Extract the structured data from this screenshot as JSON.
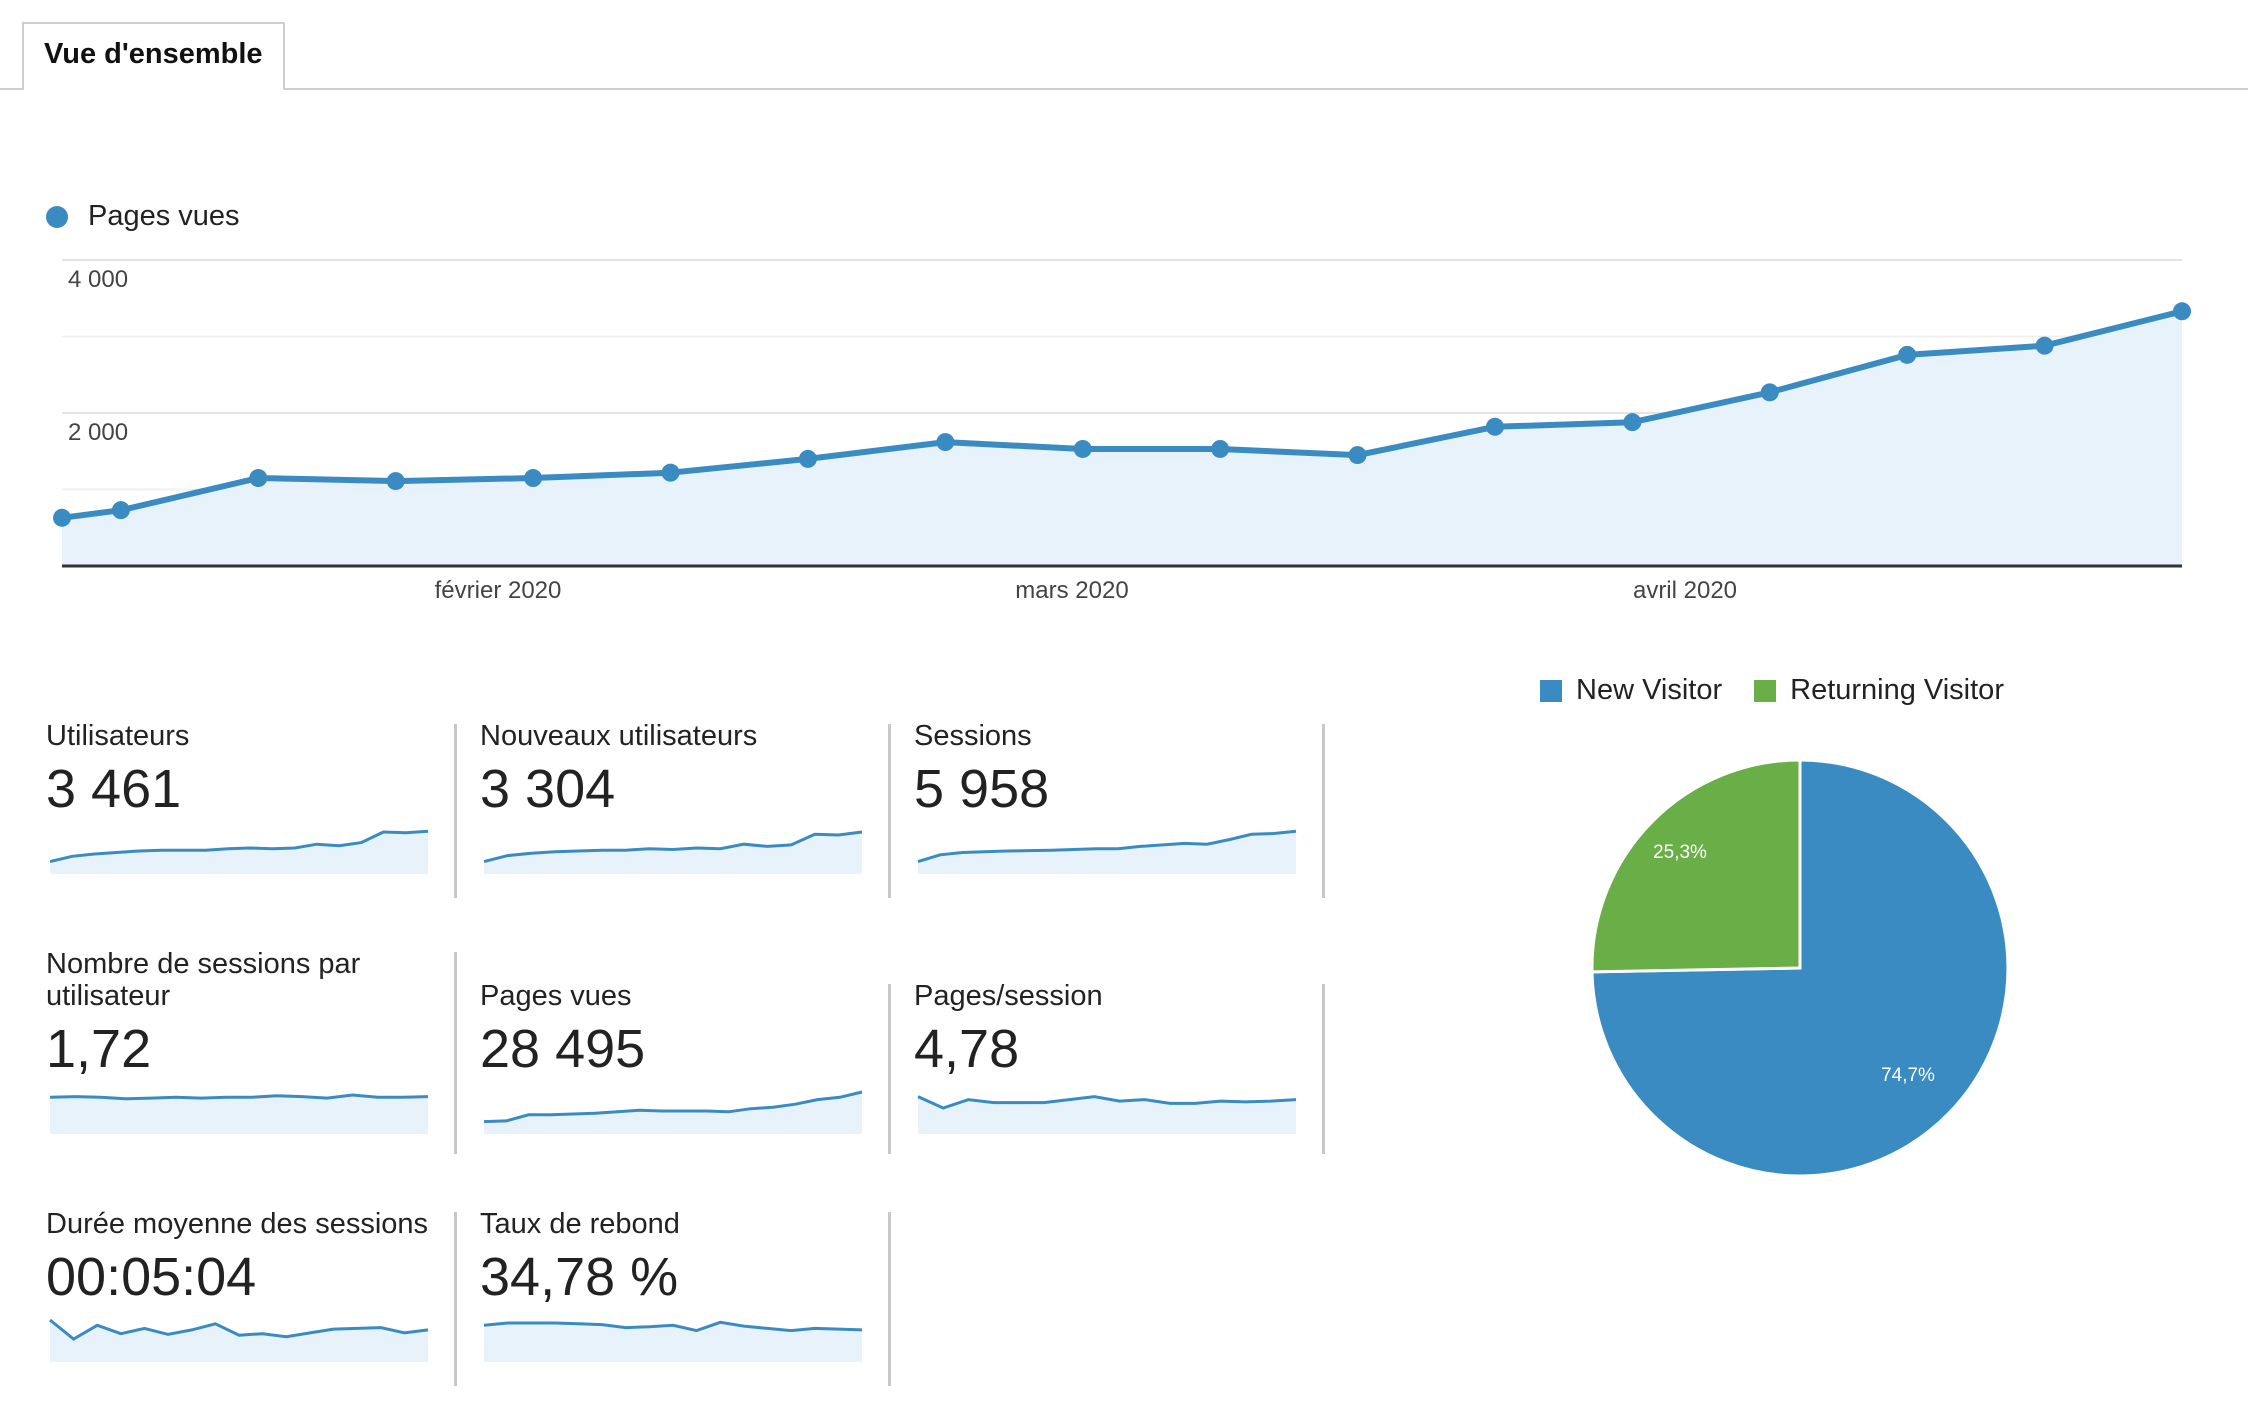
{
  "tabs": [
    {
      "label": "Vue d'ensemble"
    }
  ],
  "main_chart": {
    "legend": "Pages vues",
    "color": "#3a8bc2",
    "y_ticks": [
      "4 000",
      "2 000"
    ],
    "x_ticks": [
      "février 2020",
      "mars 2020",
      "avril 2020"
    ]
  },
  "metrics": [
    {
      "label": "Utilisateurs",
      "value": "3 461"
    },
    {
      "label": "Nouveaux utilisateurs",
      "value": "3 304"
    },
    {
      "label": "Sessions",
      "value": "5 958"
    },
    {
      "label": "Nombre de sessions par utilisateur",
      "value": "1,72"
    },
    {
      "label": "Pages vues",
      "value": "28 495"
    },
    {
      "label": "Pages/session",
      "value": "4,78"
    },
    {
      "label": "Durée moyenne des sessions",
      "value": "00:05:04"
    },
    {
      "label": "Taux de rebond",
      "value": "34,78 %"
    }
  ],
  "pie": {
    "legend": [
      {
        "label": "New Visitor",
        "color": "#3a8bc2"
      },
      {
        "label": "Returning Visitor",
        "color": "#6aae47"
      }
    ],
    "slice_labels": [
      "74,7%",
      "25,3%"
    ]
  },
  "chart_data": [
    {
      "type": "area",
      "series": [
        {
          "name": "Pages vues",
          "values": [
            630,
            730,
            1150,
            1110,
            1150,
            1220,
            1400,
            1620,
            1530,
            1530,
            1450,
            1820,
            1880,
            2270,
            2760,
            2880,
            3330
          ]
        }
      ],
      "x": [
        "2020-01-02",
        "2020-01-05",
        "2020-01-12",
        "2020-01-19",
        "2020-01-26",
        "2020-02-02",
        "2020-02-09",
        "2020-02-16",
        "2020-02-23",
        "2020-03-01",
        "2020-03-08",
        "2020-03-15",
        "2020-03-22",
        "2020-03-29",
        "2020-04-05",
        "2020-04-12",
        "2020-04-19"
      ],
      "ylim": [
        0,
        4000
      ],
      "y_ticks": [
        2000,
        4000
      ],
      "x_tick_labels": [
        "février 2020",
        "mars 2020",
        "avril 2020"
      ],
      "legend": "top-left",
      "grid": true
    },
    {
      "type": "pie",
      "categories": [
        "New Visitor",
        "Returning Visitor"
      ],
      "values": [
        74.7,
        25.3
      ],
      "legend": "top"
    }
  ],
  "sparklines": [
    [
      0.22,
      0.36,
      0.42,
      0.46,
      0.5,
      0.52,
      0.52,
      0.52,
      0.56,
      0.58,
      0.56,
      0.58,
      0.68,
      0.64,
      0.72,
      1.0,
      0.98,
      1.02
    ],
    [
      0.22,
      0.38,
      0.44,
      0.48,
      0.5,
      0.52,
      0.52,
      0.56,
      0.54,
      0.58,
      0.56,
      0.68,
      0.62,
      0.66,
      0.94,
      0.92,
      1.0
    ],
    [
      0.22,
      0.4,
      0.46,
      0.48,
      0.5,
      0.51,
      0.52,
      0.54,
      0.56,
      0.56,
      0.62,
      0.66,
      0.7,
      0.68,
      0.8,
      0.94,
      0.96,
      1.02
    ],
    [
      0.86,
      0.88,
      0.86,
      0.82,
      0.84,
      0.86,
      0.84,
      0.86,
      0.86,
      0.9,
      0.88,
      0.84,
      0.92,
      0.86,
      0.86,
      0.88
    ],
    [
      0.22,
      0.24,
      0.4,
      0.4,
      0.42,
      0.44,
      0.48,
      0.52,
      0.5,
      0.5,
      0.5,
      0.48,
      0.56,
      0.6,
      0.68,
      0.8,
      0.86,
      1.0
    ],
    [
      0.88,
      0.58,
      0.8,
      0.72,
      0.72,
      0.72,
      0.8,
      0.88,
      0.76,
      0.8,
      0.7,
      0.7,
      0.76,
      0.74,
      0.76,
      0.8
    ],
    [
      1.0,
      0.5,
      0.86,
      0.64,
      0.78,
      0.62,
      0.74,
      0.9,
      0.6,
      0.64,
      0.56,
      0.66,
      0.76,
      0.78,
      0.8,
      0.66,
      0.74
    ],
    [
      0.86,
      0.92,
      0.92,
      0.92,
      0.9,
      0.88,
      0.8,
      0.82,
      0.86,
      0.72,
      0.94,
      0.84,
      0.78,
      0.72,
      0.78,
      0.76,
      0.74
    ]
  ]
}
